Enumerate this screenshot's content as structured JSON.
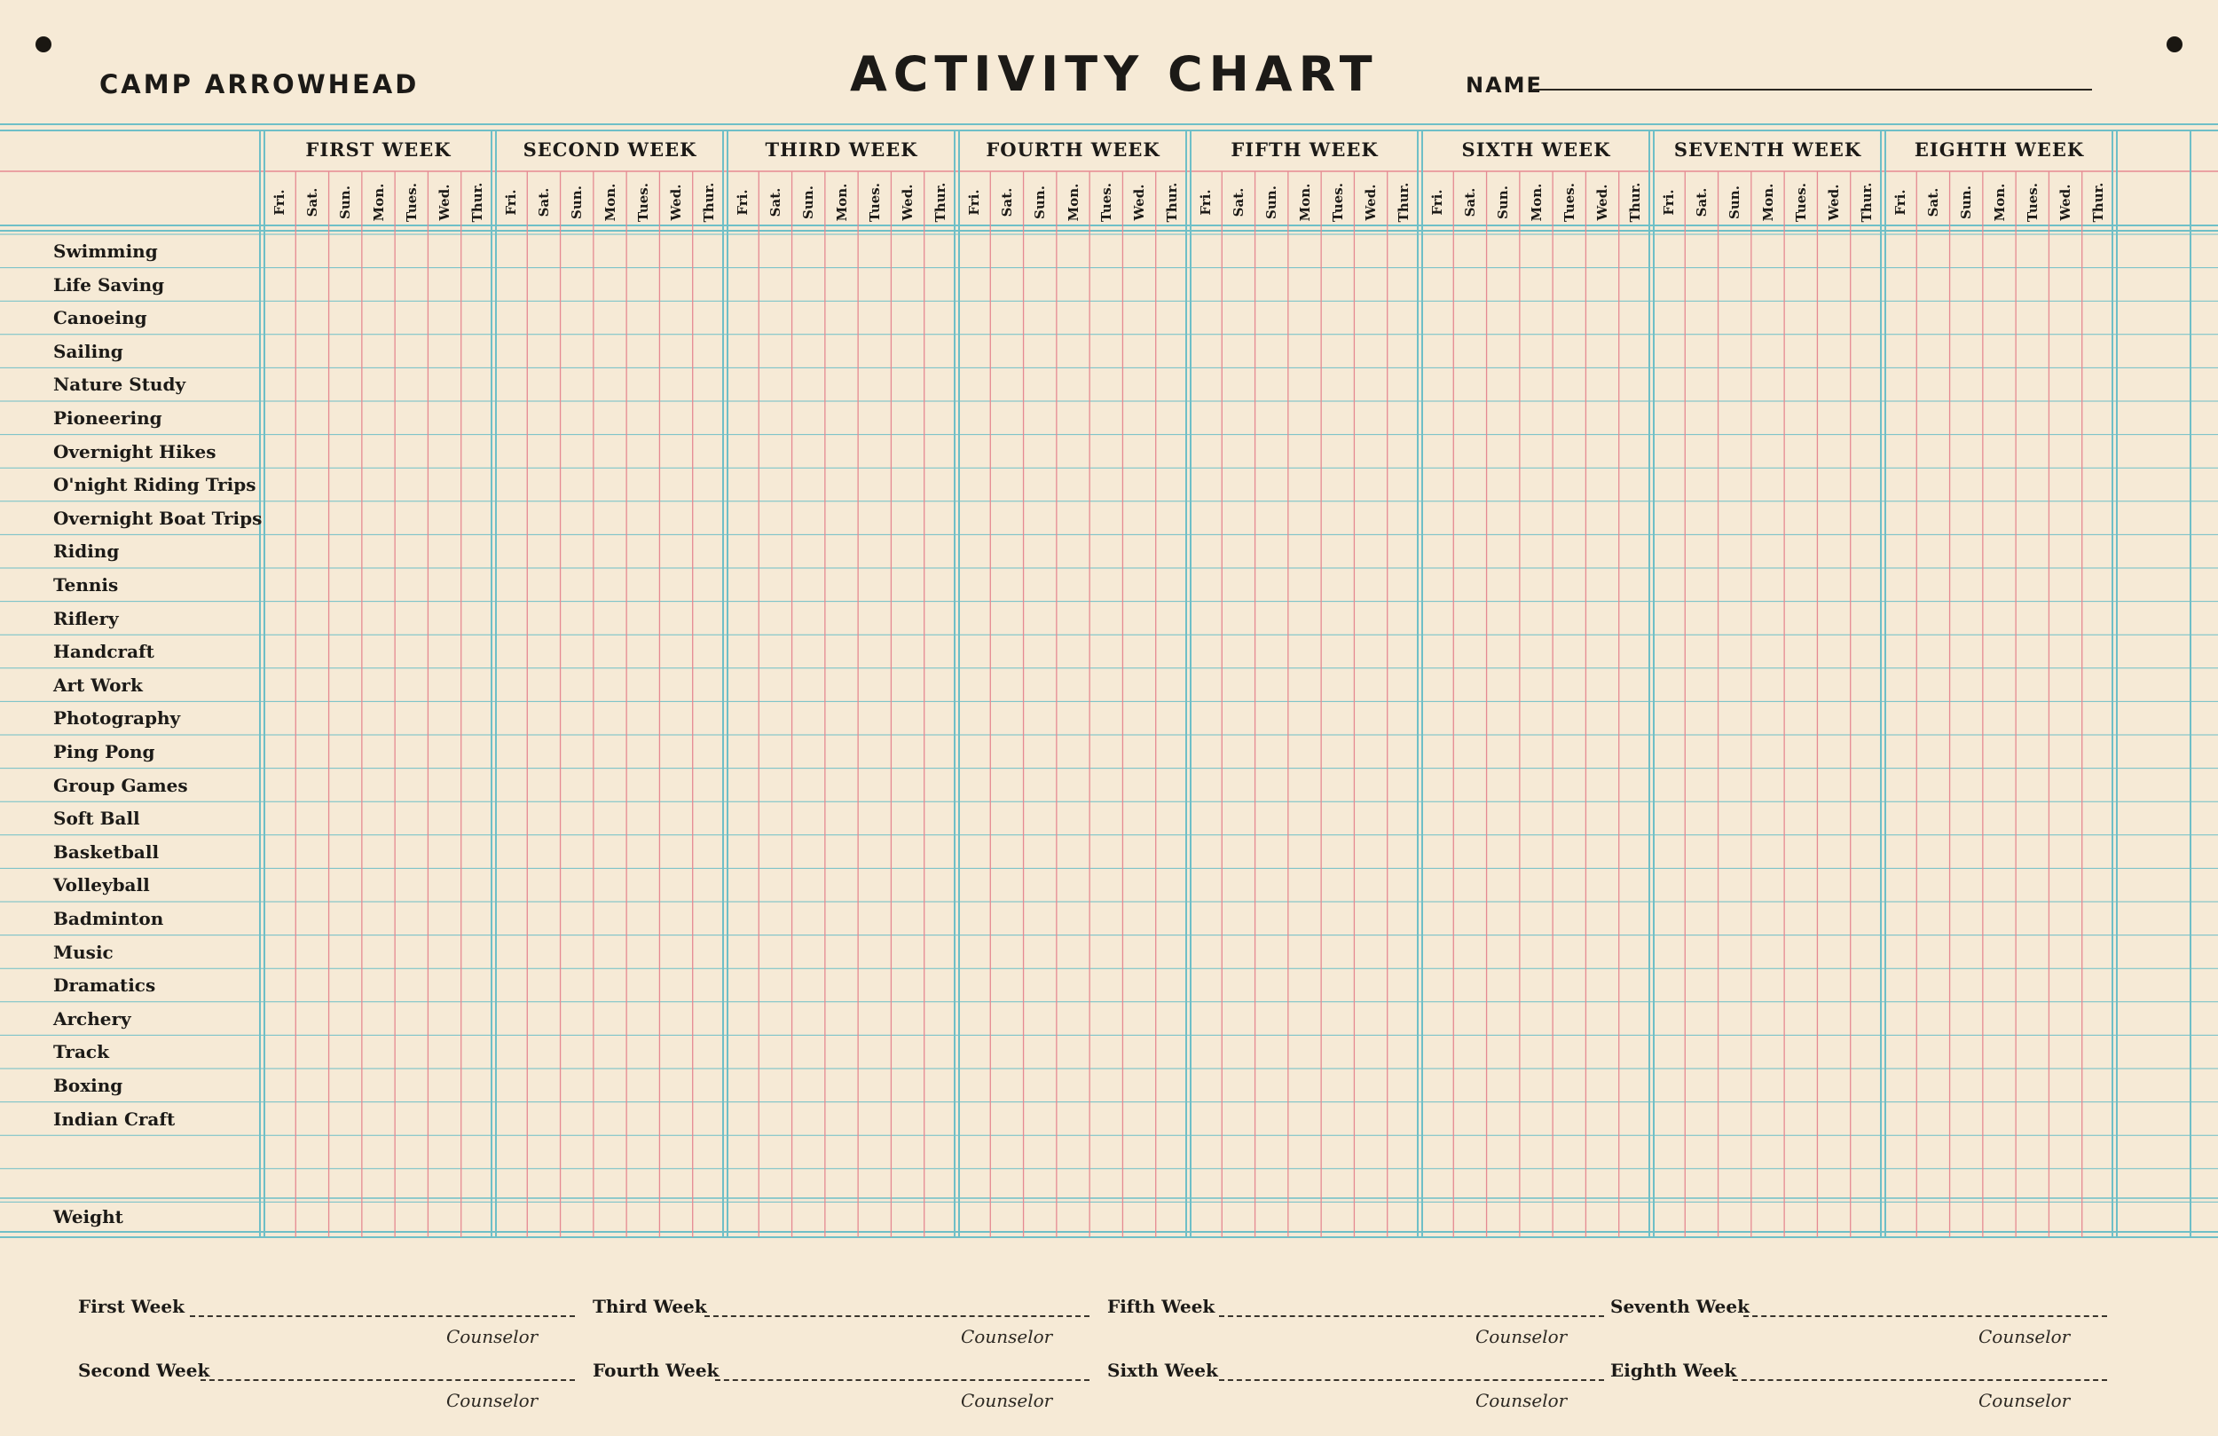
{
  "header": {
    "camp": "CAMP ARROWHEAD",
    "title": "ACTIVITY CHART",
    "name_label": "NAME"
  },
  "weeks": [
    "FIRST WEEK",
    "SECOND WEEK",
    "THIRD WEEK",
    "FOURTH WEEK",
    "FIFTH WEEK",
    "SIXTH WEEK",
    "SEVENTH WEEK",
    "EIGHTH WEEK"
  ],
  "days": [
    "Fri.",
    "Sat.",
    "Sun.",
    "Mon.",
    "Tues.",
    "Wed.",
    "Thur."
  ],
  "activities": [
    "Swimming",
    "Life Saving",
    "Canoeing",
    "Sailing",
    "Nature Study",
    "Pioneering",
    "Overnight Hikes",
    "O'night Riding Trips",
    "Overnight Boat Trips",
    "Riding",
    "Tennis",
    "Riflery",
    "Handcraft",
    "Art Work",
    "Photography",
    "Ping Pong",
    "Group Games",
    "Soft Ball",
    "Basketball",
    "Volleyball",
    "Badminton",
    "Music",
    "Dramatics",
    "Archery",
    "Track",
    "Boxing",
    "Indian Craft"
  ],
  "weight_label": "Weight",
  "signatures": [
    {
      "week": "First Week",
      "counselor": "Counselor"
    },
    {
      "week": "Second Week",
      "counselor": "Counselor"
    },
    {
      "week": "Third Week",
      "counselor": "Counselor"
    },
    {
      "week": "Fourth Week",
      "counselor": "Counselor"
    },
    {
      "week": "Fifth Week",
      "counselor": "Counselor"
    },
    {
      "week": "Sixth Week",
      "counselor": "Counselor"
    },
    {
      "week": "Seventh Week",
      "counselor": "Counselor"
    },
    {
      "week": "Eighth Week",
      "counselor": "Counselor"
    }
  ],
  "colors": {
    "paper": "#f6ead6",
    "blue_rule": "#6fbfc7",
    "red_rule": "#e58a92",
    "ink": "#1c1a17"
  }
}
